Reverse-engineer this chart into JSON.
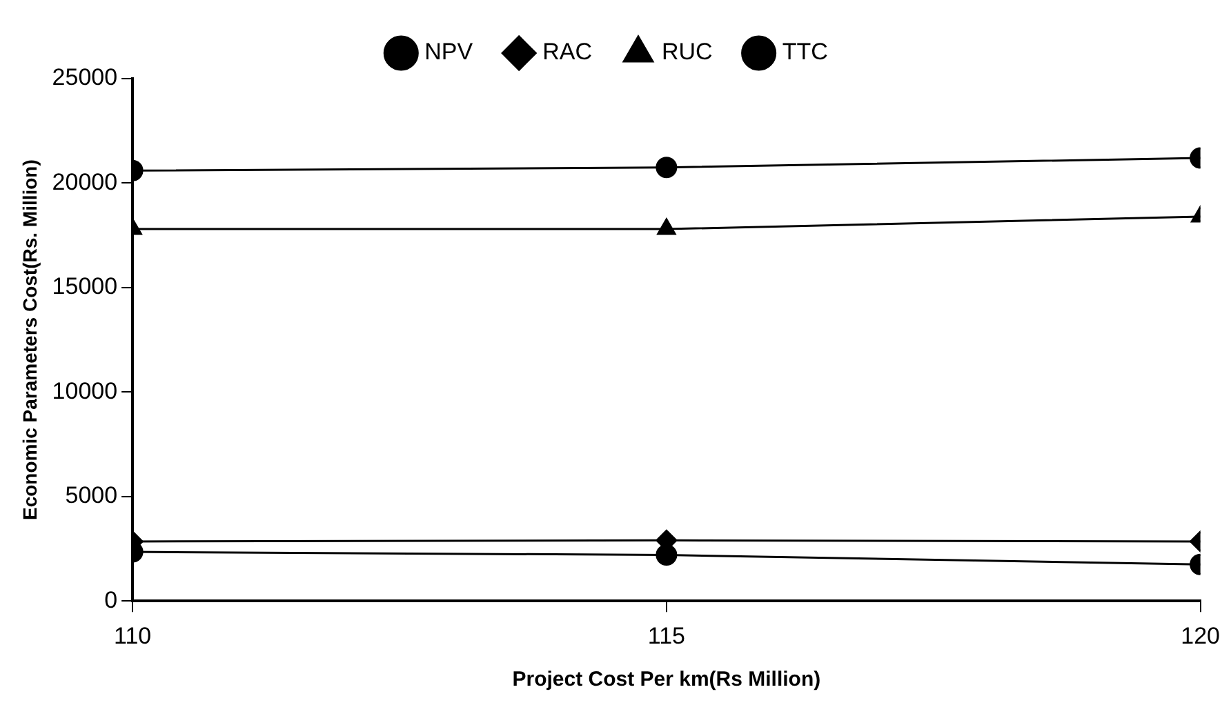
{
  "chart_data": {
    "type": "line",
    "xlabel": "Project Cost Per km(Rs Million)",
    "ylabel": "Economic Parameters Cost(Rs. Million)",
    "x": [
      110,
      115,
      120
    ],
    "xlim": [
      110,
      120
    ],
    "xticks": [
      110,
      115,
      120
    ],
    "ylim": [
      0,
      25000
    ],
    "yticks": [
      0,
      5000,
      10000,
      15000,
      20000,
      25000
    ],
    "grid": false,
    "legend": "top",
    "line_style": "solid",
    "series": [
      {
        "name": "NPV",
        "color": "#000000",
        "marker": "circle",
        "values": [
          2350,
          2200,
          1750
        ]
      },
      {
        "name": "RAC",
        "color": "#000000",
        "marker": "diamond",
        "values": [
          2850,
          2900,
          2850
        ]
      },
      {
        "name": "RUC",
        "color": "#000000",
        "marker": "triangle",
        "values": [
          17800,
          17800,
          18400
        ]
      },
      {
        "name": "TTC",
        "color": "#000000",
        "marker": "circle",
        "values": [
          20600,
          20750,
          21200
        ]
      }
    ]
  }
}
